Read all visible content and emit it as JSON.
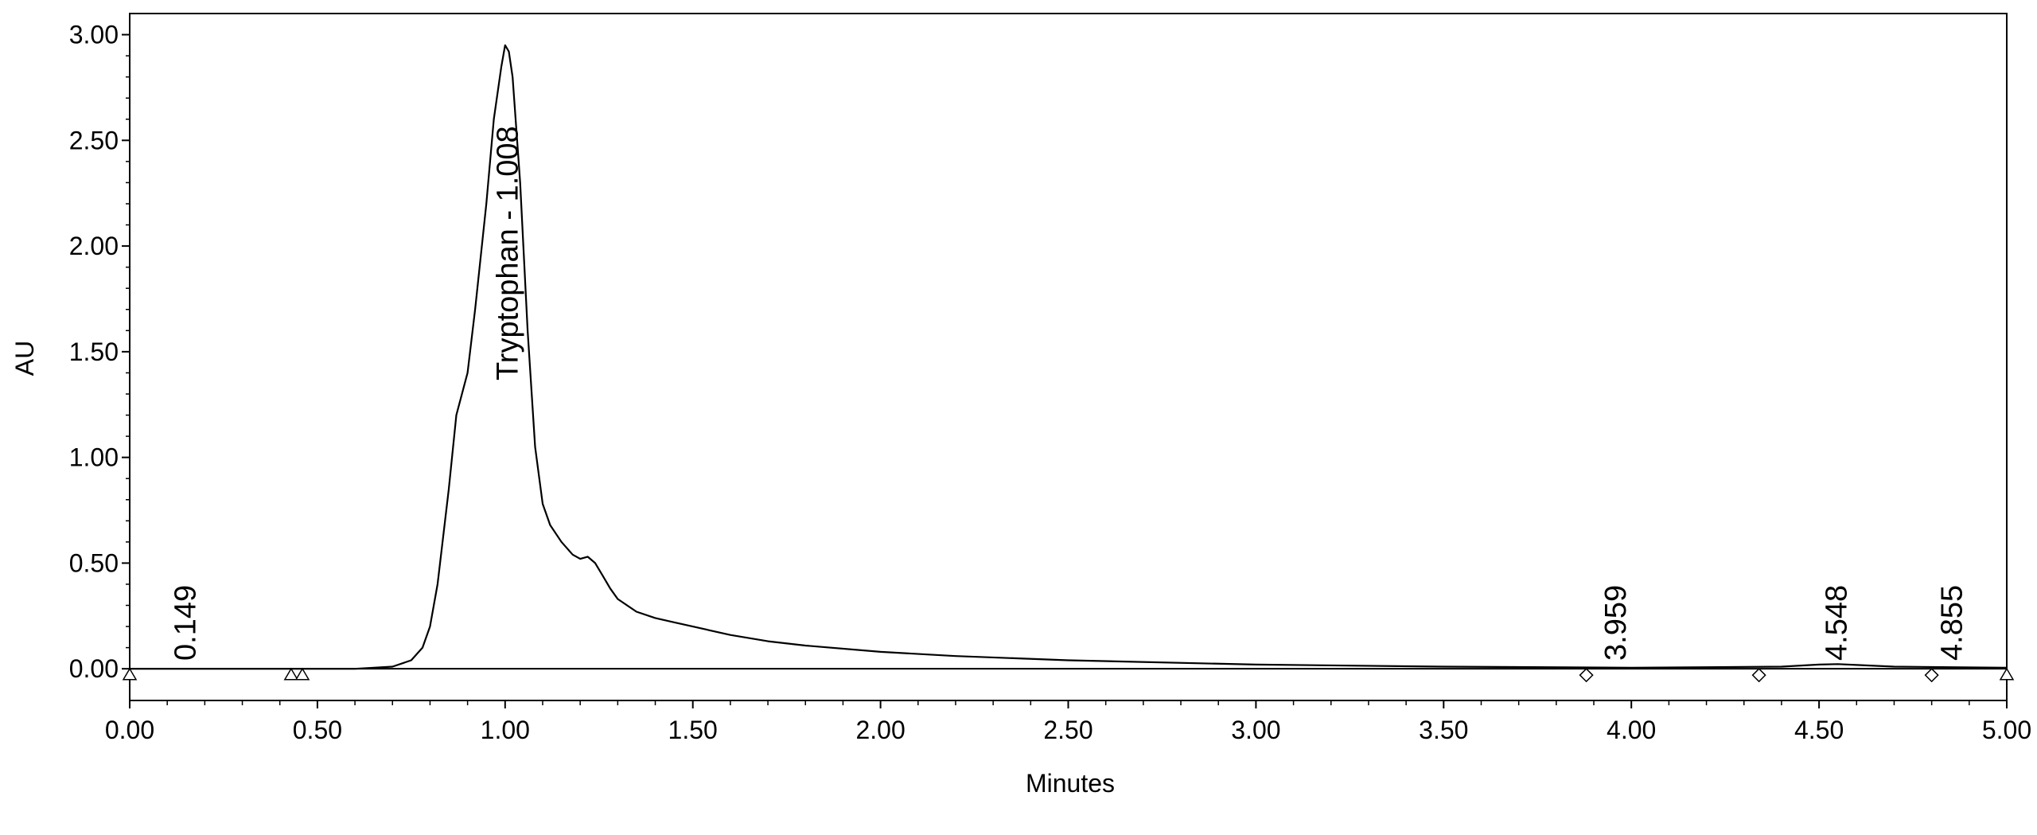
{
  "chart_data": {
    "type": "line",
    "xlabel": "Minutes",
    "ylabel": "AU",
    "xlim": [
      0.0,
      5.0
    ],
    "ylim": [
      -0.15,
      3.1
    ],
    "xticks": [
      "0.00",
      "0.50",
      "1.00",
      "1.50",
      "2.00",
      "2.50",
      "3.00",
      "3.50",
      "4.00",
      "4.50",
      "5.00"
    ],
    "yticks": [
      "0.00",
      "0.50",
      "1.00",
      "1.50",
      "2.00",
      "2.50",
      "3.00"
    ],
    "grid": false,
    "series": [
      {
        "x": [
          0.0,
          0.6,
          0.7,
          0.75,
          0.78,
          0.8,
          0.82,
          0.85,
          0.87,
          0.9,
          0.92,
          0.95,
          0.97,
          0.99,
          1.0,
          1.01,
          1.02,
          1.04,
          1.06,
          1.08,
          1.1,
          1.12,
          1.15,
          1.18,
          1.2,
          1.22,
          1.24,
          1.26,
          1.28,
          1.3,
          1.35,
          1.4,
          1.45,
          1.5,
          1.6,
          1.7,
          1.8,
          2.0,
          2.2,
          2.5,
          3.0,
          3.5,
          4.0,
          4.4,
          4.5,
          4.55,
          4.6,
          4.7,
          5.0
        ],
        "y": [
          0.0,
          0.0,
          0.01,
          0.04,
          0.1,
          0.2,
          0.4,
          0.85,
          1.2,
          1.4,
          1.7,
          2.2,
          2.6,
          2.85,
          2.95,
          2.92,
          2.8,
          2.3,
          1.6,
          1.05,
          0.78,
          0.68,
          0.6,
          0.54,
          0.52,
          0.53,
          0.5,
          0.44,
          0.38,
          0.33,
          0.27,
          0.24,
          0.22,
          0.2,
          0.16,
          0.13,
          0.11,
          0.08,
          0.06,
          0.04,
          0.02,
          0.01,
          0.005,
          0.01,
          0.02,
          0.022,
          0.018,
          0.01,
          0.005
        ]
      }
    ],
    "peak_labels": [
      {
        "x": 0.149,
        "text": "0.149"
      },
      {
        "x": 1.008,
        "text": "Tryptophan - 1.008"
      },
      {
        "x": 3.959,
        "text": "3.959"
      },
      {
        "x": 4.548,
        "text": "4.548"
      },
      {
        "x": 4.855,
        "text": "4.855"
      }
    ],
    "markers": [
      {
        "shape": "triangle",
        "x": 0.0
      },
      {
        "shape": "triangle",
        "x": 0.43
      },
      {
        "shape": "triangle",
        "x": 0.46
      },
      {
        "shape": "triangle",
        "x": 5.0
      },
      {
        "shape": "diamond",
        "x": 3.88
      },
      {
        "shape": "diamond",
        "x": 4.34
      },
      {
        "shape": "diamond",
        "x": 4.8
      }
    ],
    "line_color": "#000000"
  }
}
